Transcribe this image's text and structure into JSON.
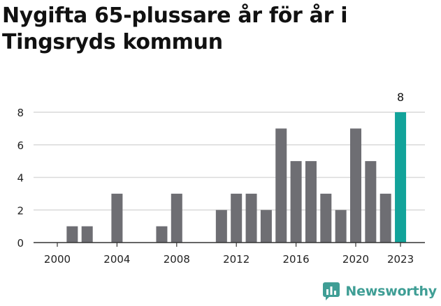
{
  "chart_data": {
    "type": "bar",
    "title": "Nygifta 65-plussare år för år i Tingsryds kommun",
    "xlabel": "",
    "ylabel": "",
    "years": [
      2000,
      2001,
      2002,
      2003,
      2004,
      2005,
      2006,
      2007,
      2008,
      2009,
      2010,
      2011,
      2012,
      2013,
      2014,
      2015,
      2016,
      2017,
      2018,
      2019,
      2020,
      2021,
      2022,
      2023
    ],
    "values": [
      0,
      1,
      1,
      0,
      3,
      0,
      0,
      1,
      3,
      0,
      0,
      2,
      3,
      3,
      2,
      7,
      5,
      5,
      3,
      2,
      7,
      5,
      3,
      8
    ],
    "x_ticks": [
      "2000",
      "2004",
      "2008",
      "2012",
      "2016",
      "2020",
      "2023"
    ],
    "y_ticks": [
      "0",
      "2",
      "4",
      "6",
      "8"
    ],
    "ylim": [
      0,
      8
    ],
    "highlight_year": 2023,
    "highlight_label": "8",
    "grid": true,
    "colors": {
      "bar": "#6e6e73",
      "highlight": "#12a39a",
      "grid": "#d9d9d9",
      "axis": "#333333"
    }
  },
  "brand": {
    "name": "Newsworthy",
    "icon": "newsworthy-logo-icon",
    "color": "#3f9e95"
  }
}
